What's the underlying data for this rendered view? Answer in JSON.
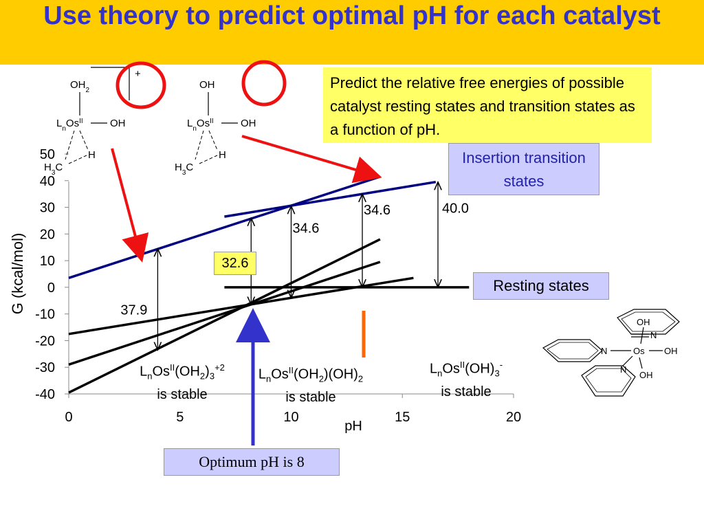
{
  "slide": {
    "title": "Use theory to predict optimal pH for each catalyst",
    "predict_text": "Predict the relative free energies of possible catalyst resting states and transition states as a function of pH.",
    "insertion_label": "Insertion transition states",
    "resting_label": "Resting states",
    "optimum_label": "Optimum pH is 8"
  },
  "stable_labels": [
    {
      "prefix": "L",
      "sub": "n",
      "mid": "Os",
      "sup1": "II",
      "rest": "(OH",
      "sub2": "2",
      "rest2": ")",
      "sub3": "3",
      "sup2": "+2",
      "line2": "is stable"
    },
    {
      "prefix": "L",
      "sub": "n",
      "mid": "Os",
      "sup1": "II",
      "rest": "(OH",
      "sub2": "2",
      "rest2": ")(OH)",
      "sub3": "2",
      "sup2": "",
      "line2": "is stable"
    },
    {
      "prefix": "L",
      "sub": "n",
      "mid": "Os",
      "sup1": "II",
      "rest": "(OH)",
      "sub2": "3",
      "rest2": "",
      "sub3": "",
      "sup2": "-",
      "line2": "is stable"
    }
  ],
  "structures": {
    "left": {
      "top": "OH",
      "top_sub": "2",
      "center": "Os",
      "ligand": "L",
      "ligand_sub": "n",
      "ox": "II",
      "right": "OH",
      "h": "H",
      "methyl": "H",
      "methyl_sub": "3",
      "methyl_c": "C",
      "charge": "+"
    },
    "right": {
      "top": "OH",
      "center": "Os",
      "ligand": "L",
      "ligand_sub": "n",
      "ox": "II",
      "right": "OH",
      "h": "H",
      "methyl": "H",
      "methyl_sub": "3",
      "methyl_c": "C"
    },
    "complex": {
      "center": "Os",
      "n1": "N",
      "n2": "N",
      "n3": "N",
      "oh_top": "OH",
      "oh_right": "OH",
      "oh_bottom": "OH"
    }
  },
  "chart_data": {
    "type": "line",
    "xlabel": "pH",
    "ylabel": "G (kcal/mol)",
    "xlim": [
      0,
      20
    ],
    "ylim": [
      -40,
      50
    ],
    "xticks": [
      "0",
      "5",
      "10",
      "15",
      "20"
    ],
    "yticks": [
      "50",
      "40",
      "30",
      "20",
      "10",
      "0",
      "-10",
      "-20",
      "-30",
      "-40"
    ],
    "series": [
      {
        "role": "resting",
        "color": "#000000",
        "x": [
          0,
          15.5
        ],
        "y": [
          -17.5,
          3.5
        ]
      },
      {
        "role": "resting",
        "color": "#000000",
        "x": [
          0,
          14
        ],
        "y": [
          -29,
          9.5
        ]
      },
      {
        "role": "resting",
        "color": "#000000",
        "x": [
          0,
          14
        ],
        "y": [
          -39.5,
          18
        ]
      },
      {
        "role": "resting",
        "color": "#000000",
        "x": [
          7,
          18
        ],
        "y": [
          0,
          0
        ]
      },
      {
        "role": "insertion",
        "color": "#000080",
        "x": [
          0,
          14
        ],
        "y": [
          3.5,
          41.5
        ]
      },
      {
        "role": "insertion",
        "color": "#000080",
        "x": [
          7,
          16.5
        ],
        "y": [
          26.5,
          39.5
        ]
      }
    ],
    "intervals": [
      {
        "label": "37.9",
        "x": 4,
        "y1": -23.5,
        "y2": 14.5
      },
      {
        "label": "32.6",
        "x": 8.2,
        "y1": -6.5,
        "y2": 26
      },
      {
        "label": "34.6",
        "x": 10,
        "y1": -4,
        "y2": 30.5
      },
      {
        "label": "34.6",
        "x": 13.2,
        "y1": 0,
        "y2": 35
      },
      {
        "label": "40.0",
        "x": 16.6,
        "y1": 0,
        "y2": 39.5
      }
    ],
    "colors": {
      "resting": "#000000",
      "insertion": "#000080",
      "arrow_red": "#EE1111",
      "arrow_blue": "#3333CC",
      "orange_mark": "#FF6600",
      "circle": "#EE1111"
    }
  }
}
